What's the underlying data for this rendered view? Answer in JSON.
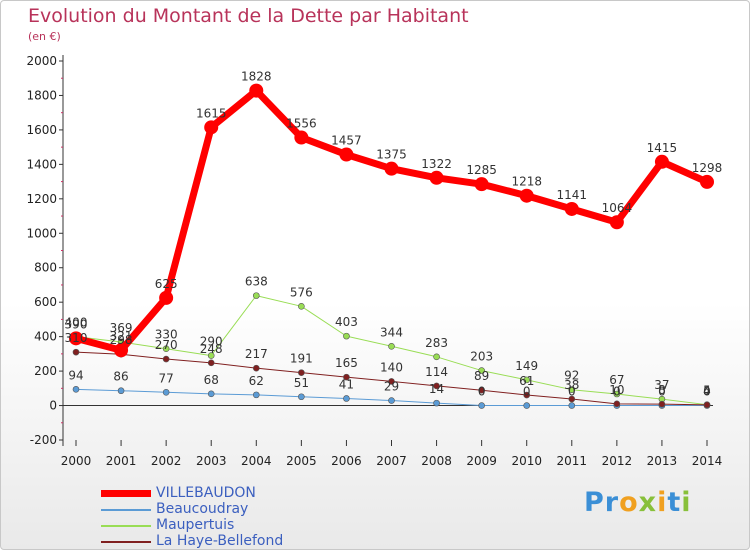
{
  "title": "Evolution du Montant de la Dette par Habitant",
  "subtitle": "(en €)",
  "logo": {
    "text": "Proxiti",
    "colors": [
      "#3b8fd6",
      "#f0a020",
      "#88c03a"
    ]
  },
  "chart_data": {
    "type": "line",
    "x": [
      "2000",
      "2001",
      "2002",
      "2003",
      "2004",
      "2005",
      "2006",
      "2007",
      "2008",
      "2009",
      "2010",
      "2011",
      "2012",
      "2013",
      "2014"
    ],
    "ylim": [
      -200,
      2000
    ],
    "yticks": [
      -200,
      0,
      200,
      400,
      600,
      800,
      1000,
      1200,
      1400,
      1600,
      1800,
      2000
    ],
    "grid": false,
    "legend_position": "bottom-left",
    "series": [
      {
        "name": "VILLEBAUDON",
        "color": "#ff0000",
        "width": 7,
        "radius": 7,
        "values": [
          390,
          321,
          625,
          1615,
          1828,
          1556,
          1457,
          1375,
          1322,
          1285,
          1218,
          1141,
          1064,
          1415,
          1298
        ]
      },
      {
        "name": "Beaucoudray",
        "color": "#5b9bd5",
        "width": 1,
        "radius": 3,
        "values": [
          94,
          86,
          77,
          68,
          62,
          51,
          41,
          29,
          14,
          0,
          0,
          0,
          0,
          0,
          0
        ]
      },
      {
        "name": "Maupertuis",
        "color": "#99dd55",
        "width": 1,
        "radius": 3,
        "values": [
          400,
          369,
          330,
          290,
          638,
          576,
          403,
          344,
          283,
          203,
          149,
          92,
          67,
          37,
          5
        ]
      },
      {
        "name": "La Haye-Bellefond",
        "color": "#802020",
        "width": 1,
        "radius": 3,
        "values": [
          310,
          298,
          270,
          248,
          217,
          191,
          165,
          140,
          114,
          89,
          61,
          38,
          10,
          8,
          4
        ]
      }
    ],
    "data_labels": {
      "VILLEBAUDON": [
        "390",
        "321",
        "625",
        "1615",
        "1828",
        "1556",
        "1457",
        "1375",
        "1322",
        "1285",
        "1218",
        "1141",
        "1064",
        "1415",
        "1298"
      ],
      "Beaucoudray": [
        "94",
        "86",
        "77",
        "68",
        "62",
        "51",
        "41",
        "29",
        "14",
        "0",
        "0",
        "0",
        "0",
        "0",
        "0"
      ],
      "Maupertuis": [
        "400",
        "369",
        "330",
        "290",
        "638",
        "576",
        "403",
        "344",
        "283",
        "203",
        "149",
        "92",
        "67",
        "37",
        "5"
      ],
      "La Haye-Bellefond": [
        "310",
        "298",
        "270",
        "248",
        "217",
        "191",
        "165",
        "140",
        "114",
        "89",
        "61",
        "38",
        "10",
        "8",
        "4"
      ]
    }
  }
}
